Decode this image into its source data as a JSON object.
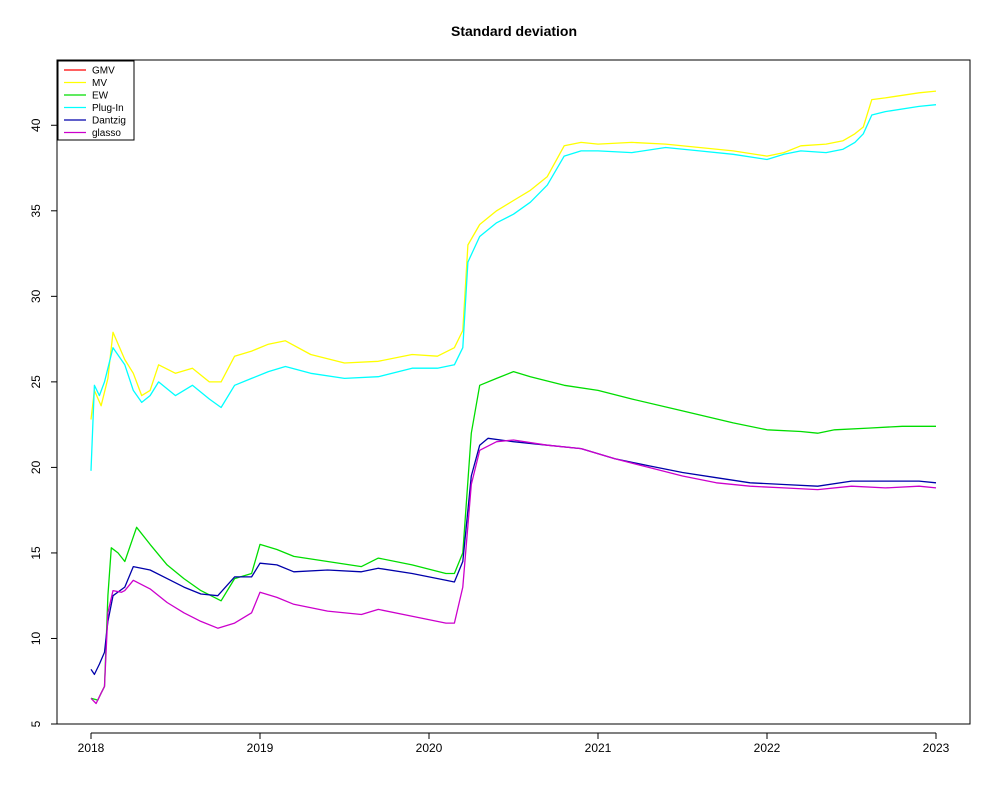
{
  "chart_data": {
    "type": "line",
    "title": "Standard deviation",
    "xlabel": "",
    "ylabel": "",
    "xlim": [
      2018.0,
      2023.0
    ],
    "ylim": [
      5,
      42.5
    ],
    "x_ticks": [
      2018,
      2019,
      2020,
      2021,
      2022,
      2023
    ],
    "x_tick_labels": [
      "2018",
      "2019",
      "2020",
      "2021",
      "2022",
      "2023"
    ],
    "y_ticks": [
      5,
      10,
      15,
      20,
      25,
      30,
      35,
      40
    ],
    "y_tick_labels": [
      "5",
      "10",
      "15",
      "20",
      "25",
      "30",
      "35",
      "40"
    ],
    "grid": false,
    "legend_position": "top-left",
    "series": [
      {
        "name": "GMV",
        "color": "#FF0000",
        "x": [],
        "y": []
      },
      {
        "name": "MV",
        "color": "#FFFF00",
        "x": [
          2018.0,
          2018.02,
          2018.06,
          2018.1,
          2018.13,
          2018.2,
          2018.25,
          2018.3,
          2018.35,
          2018.4,
          2018.5,
          2018.6,
          2018.7,
          2018.77,
          2018.85,
          2018.95,
          2019.05,
          2019.15,
          2019.3,
          2019.5,
          2019.7,
          2019.9,
          2020.05,
          2020.15,
          2020.2,
          2020.23,
          2020.3,
          2020.4,
          2020.5,
          2020.6,
          2020.7,
          2020.8,
          2020.9,
          2021.0,
          2021.2,
          2021.4,
          2021.6,
          2021.8,
          2022.0,
          2022.1,
          2022.2,
          2022.35,
          2022.45,
          2022.52,
          2022.57,
          2022.62,
          2022.7,
          2022.9,
          2023.0
        ],
        "y": [
          22.8,
          24.5,
          23.6,
          25.2,
          27.9,
          26.3,
          25.5,
          24.2,
          24.5,
          26.0,
          25.5,
          25.8,
          25.0,
          25.0,
          26.5,
          26.8,
          27.2,
          27.4,
          26.6,
          26.1,
          26.2,
          26.6,
          26.5,
          27.0,
          28.0,
          33.0,
          34.2,
          35.0,
          35.6,
          36.2,
          37.0,
          38.8,
          39.0,
          38.9,
          39.0,
          38.9,
          38.7,
          38.5,
          38.2,
          38.4,
          38.8,
          38.9,
          39.1,
          39.5,
          39.9,
          41.5,
          41.6,
          41.9,
          42.0
        ]
      },
      {
        "name": "EW",
        "color": "#00DD00",
        "x": [
          2018.0,
          2018.04,
          2018.06,
          2018.08,
          2018.1,
          2018.12,
          2018.16,
          2018.2,
          2018.27,
          2018.35,
          2018.45,
          2018.55,
          2018.65,
          2018.77,
          2018.85,
          2018.95,
          2019.0,
          2019.1,
          2019.2,
          2019.4,
          2019.6,
          2019.7,
          2019.9,
          2020.1,
          2020.15,
          2020.2,
          2020.25,
          2020.3,
          2020.4,
          2020.5,
          2020.6,
          2020.8,
          2021.0,
          2021.2,
          2021.5,
          2021.8,
          2022.0,
          2022.2,
          2022.3,
          2022.4,
          2022.6,
          2022.8,
          2023.0
        ],
        "y": [
          6.5,
          6.4,
          6.8,
          7.2,
          12.5,
          15.3,
          15.0,
          14.5,
          16.5,
          15.5,
          14.3,
          13.5,
          12.8,
          12.2,
          13.5,
          13.8,
          15.5,
          15.2,
          14.8,
          14.5,
          14.2,
          14.7,
          14.3,
          13.8,
          13.8,
          15.0,
          22.0,
          24.8,
          25.2,
          25.6,
          25.3,
          24.8,
          24.5,
          24.0,
          23.3,
          22.6,
          22.2,
          22.1,
          22.0,
          22.2,
          22.3,
          22.4,
          22.4
        ]
      },
      {
        "name": "Plug-In",
        "color": "#00FFFF",
        "x": [
          2018.0,
          2018.02,
          2018.05,
          2018.08,
          2018.13,
          2018.2,
          2018.25,
          2018.3,
          2018.35,
          2018.4,
          2018.5,
          2018.6,
          2018.7,
          2018.77,
          2018.85,
          2018.95,
          2019.05,
          2019.15,
          2019.3,
          2019.5,
          2019.7,
          2019.9,
          2020.05,
          2020.15,
          2020.2,
          2020.23,
          2020.3,
          2020.4,
          2020.5,
          2020.6,
          2020.7,
          2020.8,
          2020.9,
          2021.0,
          2021.2,
          2021.4,
          2021.6,
          2021.8,
          2022.0,
          2022.1,
          2022.2,
          2022.35,
          2022.45,
          2022.52,
          2022.57,
          2022.62,
          2022.7,
          2022.9,
          2023.0
        ],
        "y": [
          19.8,
          24.8,
          24.2,
          25.0,
          27.0,
          26.0,
          24.5,
          23.8,
          24.2,
          25.0,
          24.2,
          24.8,
          24.0,
          23.5,
          24.8,
          25.2,
          25.6,
          25.9,
          25.5,
          25.2,
          25.3,
          25.8,
          25.8,
          26.0,
          27.0,
          32.0,
          33.5,
          34.3,
          34.8,
          35.5,
          36.5,
          38.2,
          38.5,
          38.5,
          38.4,
          38.7,
          38.5,
          38.3,
          38.0,
          38.3,
          38.5,
          38.4,
          38.6,
          39.0,
          39.5,
          40.6,
          40.8,
          41.1,
          41.2
        ]
      },
      {
        "name": "Dantzig",
        "color": "#0000AA",
        "x": [
          2018.0,
          2018.02,
          2018.05,
          2018.08,
          2018.1,
          2018.13,
          2018.2,
          2018.25,
          2018.35,
          2018.45,
          2018.55,
          2018.65,
          2018.75,
          2018.85,
          2018.95,
          2019.0,
          2019.1,
          2019.2,
          2019.4,
          2019.6,
          2019.7,
          2019.9,
          2020.1,
          2020.15,
          2020.2,
          2020.25,
          2020.3,
          2020.35,
          2020.5,
          2020.7,
          2020.9,
          2021.1,
          2021.3,
          2021.5,
          2021.7,
          2021.9,
          2022.1,
          2022.3,
          2022.5,
          2022.7,
          2022.9,
          2023.0
        ],
        "y": [
          8.2,
          7.9,
          8.5,
          9.2,
          11.0,
          12.5,
          13.0,
          14.2,
          14.0,
          13.5,
          13.0,
          12.6,
          12.5,
          13.6,
          13.6,
          14.4,
          14.3,
          13.9,
          14.0,
          13.9,
          14.1,
          13.8,
          13.4,
          13.3,
          14.5,
          19.5,
          21.3,
          21.7,
          21.5,
          21.3,
          21.1,
          20.5,
          20.1,
          19.7,
          19.4,
          19.1,
          19.0,
          18.9,
          19.2,
          19.2,
          19.2,
          19.1
        ]
      },
      {
        "name": "glasso",
        "color": "#CC00CC",
        "x": [
          2018.0,
          2018.03,
          2018.06,
          2018.08,
          2018.1,
          2018.13,
          2018.18,
          2018.2,
          2018.25,
          2018.35,
          2018.45,
          2018.55,
          2018.65,
          2018.75,
          2018.85,
          2018.95,
          2019.0,
          2019.1,
          2019.2,
          2019.4,
          2019.6,
          2019.7,
          2019.9,
          2020.1,
          2020.15,
          2020.2,
          2020.25,
          2020.3,
          2020.4,
          2020.5,
          2020.7,
          2020.9,
          2021.1,
          2021.3,
          2021.5,
          2021.7,
          2021.9,
          2022.1,
          2022.3,
          2022.5,
          2022.7,
          2022.9,
          2023.0
        ],
        "y": [
          6.5,
          6.2,
          6.8,
          7.2,
          11.5,
          12.8,
          12.7,
          12.8,
          13.4,
          12.9,
          12.1,
          11.5,
          11.0,
          10.6,
          10.9,
          11.5,
          12.7,
          12.4,
          12.0,
          11.6,
          11.4,
          11.7,
          11.3,
          10.9,
          10.9,
          13.0,
          19.0,
          21.0,
          21.5,
          21.6,
          21.3,
          21.1,
          20.5,
          20.0,
          19.5,
          19.1,
          18.9,
          18.8,
          18.7,
          18.9,
          18.8,
          18.9,
          18.8
        ]
      }
    ]
  }
}
